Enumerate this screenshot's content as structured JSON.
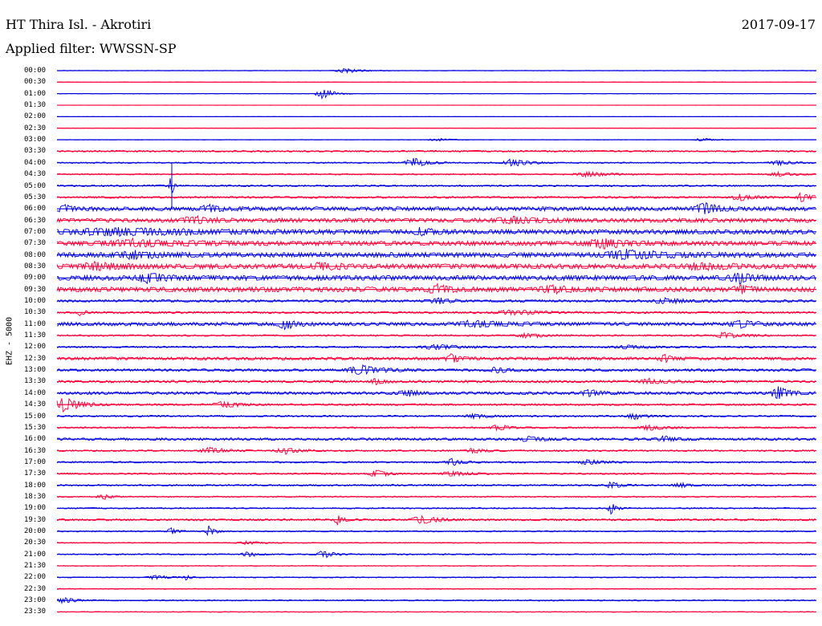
{
  "header": {
    "station": "HT Thira Isl. - Akrotiri",
    "date": "2017-09-17",
    "filter": "Applied filter: WWSSN-SP"
  },
  "channel_label": "EHZ - 5000",
  "colors": {
    "odd_trace": "#0000e0",
    "even_trace": "#ff003a",
    "text": "#000000",
    "background": "#ffffff"
  },
  "rows": [
    {
      "label": "00:00",
      "color": "blue",
      "noise": 0.3,
      "bursts": [
        [
          0.38,
          0.06,
          3
        ]
      ]
    },
    {
      "label": "00:30",
      "color": "red",
      "noise": 0.3,
      "bursts": []
    },
    {
      "label": "01:00",
      "color": "blue",
      "noise": 0.3,
      "bursts": [
        [
          0.35,
          0.04,
          7
        ]
      ]
    },
    {
      "label": "01:30",
      "color": "red",
      "noise": 0.2,
      "bursts": []
    },
    {
      "label": "02:00",
      "color": "blue",
      "noise": 0.2,
      "bursts": []
    },
    {
      "label": "02:30",
      "color": "red",
      "noise": 0.2,
      "bursts": []
    },
    {
      "label": "03:00",
      "color": "blue",
      "noise": 0.3,
      "bursts": [
        [
          0.5,
          0.05,
          2
        ],
        [
          0.85,
          0.05,
          2
        ]
      ]
    },
    {
      "label": "03:30",
      "color": "red",
      "noise": 1.0,
      "bursts": []
    },
    {
      "label": "04:00",
      "color": "blue",
      "noise": 0.8,
      "bursts": [
        [
          0.47,
          0.05,
          6
        ],
        [
          0.6,
          0.06,
          5
        ],
        [
          0.95,
          0.05,
          3
        ]
      ]
    },
    {
      "label": "04:30",
      "color": "red",
      "noise": 0.8,
      "bursts": [
        [
          0.7,
          0.08,
          3
        ],
        [
          0.95,
          0.05,
          3
        ]
      ]
    },
    {
      "label": "05:00",
      "color": "blue",
      "noise": 1.0,
      "bursts": [
        [
          0.15,
          0.01,
          16
        ]
      ]
    },
    {
      "label": "05:30",
      "color": "red",
      "noise": 1.2,
      "bursts": [
        [
          0.9,
          0.05,
          4
        ],
        [
          0.98,
          0.03,
          6
        ]
      ]
    },
    {
      "label": "06:00",
      "color": "blue",
      "noise": 2.5,
      "bursts": [
        [
          0.01,
          0.04,
          4
        ],
        [
          0.2,
          0.05,
          4
        ],
        [
          0.85,
          0.05,
          8
        ]
      ]
    },
    {
      "label": "06:30",
      "color": "red",
      "noise": 2.5,
      "bursts": [
        [
          0.18,
          0.06,
          5
        ],
        [
          0.6,
          0.1,
          4
        ]
      ]
    },
    {
      "label": "07:00",
      "color": "blue",
      "noise": 2.8,
      "bursts": [
        [
          0.08,
          0.3,
          4
        ],
        [
          0.48,
          0.05,
          4
        ]
      ]
    },
    {
      "label": "07:30",
      "color": "red",
      "noise": 2.8,
      "bursts": [
        [
          0.1,
          0.18,
          4
        ],
        [
          0.72,
          0.1,
          5
        ]
      ]
    },
    {
      "label": "08:00",
      "color": "blue",
      "noise": 3.0,
      "bursts": [
        [
          0.1,
          0.1,
          4
        ],
        [
          0.75,
          0.15,
          5
        ]
      ]
    },
    {
      "label": "08:30",
      "color": "red",
      "noise": 3.0,
      "bursts": [
        [
          0.05,
          0.1,
          4
        ],
        [
          0.35,
          0.06,
          4
        ],
        [
          0.85,
          0.1,
          4
        ]
      ]
    },
    {
      "label": "09:00",
      "color": "blue",
      "noise": 3.0,
      "bursts": [
        [
          0.12,
          0.06,
          6
        ],
        [
          0.9,
          0.06,
          6
        ]
      ]
    },
    {
      "label": "09:30",
      "color": "red",
      "noise": 3.0,
      "bursts": [
        [
          0.5,
          0.05,
          5
        ],
        [
          0.65,
          0.06,
          5
        ],
        [
          0.9,
          0.04,
          4
        ]
      ]
    },
    {
      "label": "10:00",
      "color": "blue",
      "noise": 1.5,
      "bursts": [
        [
          0.5,
          0.04,
          5
        ],
        [
          0.8,
          0.08,
          3
        ]
      ]
    },
    {
      "label": "10:30",
      "color": "red",
      "noise": 1.2,
      "bursts": [
        [
          0.03,
          0.02,
          4
        ],
        [
          0.6,
          0.1,
          3
        ]
      ]
    },
    {
      "label": "11:00",
      "color": "blue",
      "noise": 2.2,
      "bursts": [
        [
          0.3,
          0.04,
          6
        ],
        [
          0.55,
          0.1,
          4
        ],
        [
          0.9,
          0.06,
          4
        ]
      ]
    },
    {
      "label": "11:30",
      "color": "red",
      "noise": 1.0,
      "bursts": [
        [
          0.62,
          0.06,
          3
        ],
        [
          0.88,
          0.06,
          4
        ]
      ]
    },
    {
      "label": "12:00",
      "color": "blue",
      "noise": 1.0,
      "bursts": [
        [
          0.5,
          0.1,
          3
        ],
        [
          0.75,
          0.1,
          2
        ]
      ]
    },
    {
      "label": "12:30",
      "color": "red",
      "noise": 1.8,
      "bursts": [
        [
          0.52,
          0.04,
          5
        ],
        [
          0.8,
          0.04,
          4
        ]
      ]
    },
    {
      "label": "13:00",
      "color": "blue",
      "noise": 1.5,
      "bursts": [
        [
          0.4,
          0.08,
          6
        ],
        [
          0.58,
          0.04,
          4
        ]
      ]
    },
    {
      "label": "13:30",
      "color": "red",
      "noise": 1.5,
      "bursts": [
        [
          0.42,
          0.03,
          4
        ],
        [
          0.78,
          0.06,
          3
        ]
      ]
    },
    {
      "label": "14:00",
      "color": "blue",
      "noise": 1.8,
      "bursts": [
        [
          0.46,
          0.04,
          4
        ],
        [
          0.7,
          0.04,
          4
        ],
        [
          0.95,
          0.04,
          8
        ]
      ]
    },
    {
      "label": "14:30",
      "color": "red",
      "noise": 1.2,
      "bursts": [
        [
          0.01,
          0.06,
          9
        ],
        [
          0.22,
          0.06,
          4
        ]
      ]
    },
    {
      "label": "15:00",
      "color": "blue",
      "noise": 1.0,
      "bursts": [
        [
          0.55,
          0.06,
          3
        ],
        [
          0.76,
          0.04,
          4
        ]
      ]
    },
    {
      "label": "15:30",
      "color": "red",
      "noise": 1.0,
      "bursts": [
        [
          0.58,
          0.04,
          4
        ],
        [
          0.78,
          0.06,
          3
        ]
      ]
    },
    {
      "label": "16:00",
      "color": "blue",
      "noise": 1.5,
      "bursts": [
        [
          0.62,
          0.06,
          3
        ],
        [
          0.8,
          0.05,
          3
        ]
      ]
    },
    {
      "label": "16:30",
      "color": "red",
      "noise": 1.0,
      "bursts": [
        [
          0.2,
          0.06,
          4
        ],
        [
          0.3,
          0.05,
          4
        ],
        [
          0.55,
          0.05,
          3
        ]
      ]
    },
    {
      "label": "17:00",
      "color": "blue",
      "noise": 1.0,
      "bursts": [
        [
          0.52,
          0.04,
          4
        ],
        [
          0.7,
          0.06,
          3
        ]
      ]
    },
    {
      "label": "17:30",
      "color": "red",
      "noise": 1.0,
      "bursts": [
        [
          0.42,
          0.04,
          5
        ],
        [
          0.52,
          0.06,
          3
        ]
      ]
    },
    {
      "label": "18:00",
      "color": "blue",
      "noise": 1.0,
      "bursts": [
        [
          0.73,
          0.03,
          5
        ],
        [
          0.82,
          0.04,
          3
        ]
      ]
    },
    {
      "label": "18:30",
      "color": "red",
      "noise": 0.8,
      "bursts": [
        [
          0.06,
          0.03,
          4
        ]
      ]
    },
    {
      "label": "19:00",
      "color": "blue",
      "noise": 0.8,
      "bursts": [
        [
          0.73,
          0.02,
          8
        ]
      ]
    },
    {
      "label": "19:30",
      "color": "red",
      "noise": 1.2,
      "bursts": [
        [
          0.37,
          0.02,
          7
        ],
        [
          0.48,
          0.06,
          5
        ]
      ]
    },
    {
      "label": "20:00",
      "color": "blue",
      "noise": 0.8,
      "bursts": [
        [
          0.15,
          0.02,
          6
        ],
        [
          0.2,
          0.02,
          8
        ]
      ]
    },
    {
      "label": "20:30",
      "color": "red",
      "noise": 0.6,
      "bursts": [
        [
          0.25,
          0.05,
          2
        ]
      ]
    },
    {
      "label": "21:00",
      "color": "blue",
      "noise": 0.8,
      "bursts": [
        [
          0.25,
          0.03,
          4
        ],
        [
          0.35,
          0.04,
          5
        ]
      ]
    },
    {
      "label": "21:30",
      "color": "red",
      "noise": 0.5,
      "bursts": []
    },
    {
      "label": "22:00",
      "color": "blue",
      "noise": 0.6,
      "bursts": [
        [
          0.13,
          0.05,
          3
        ],
        [
          0.17,
          0.02,
          3
        ]
      ]
    },
    {
      "label": "22:30",
      "color": "red",
      "noise": 0.6,
      "bursts": []
    },
    {
      "label": "23:00",
      "color": "blue",
      "noise": 0.8,
      "bursts": [
        [
          0.01,
          0.04,
          4
        ]
      ]
    },
    {
      "label": "23:30",
      "color": "red",
      "noise": 0.5,
      "bursts": []
    }
  ]
}
